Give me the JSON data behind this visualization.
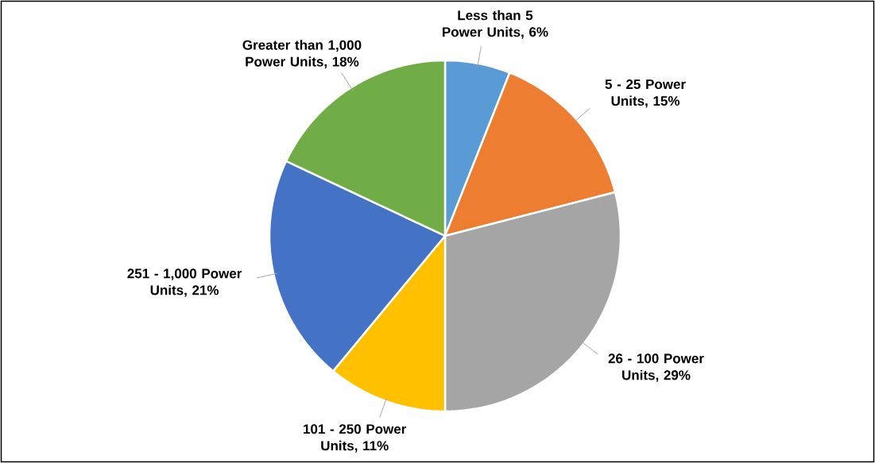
{
  "chart_data": {
    "type": "pie",
    "categories": [
      "Less than 5 Power Units, 6%",
      "5 - 25 Power Units, 15%",
      "26 - 100 Power Units, 29%",
      "101 - 250 Power Units, 11%",
      "251 - 1,000 Power Units, 21%",
      "Greater than 1,000 Power Units, 18%"
    ],
    "values": [
      6,
      15,
      29,
      11,
      21,
      18
    ],
    "colors": [
      "#5b9bd5",
      "#ed7d31",
      "#a5a5a5",
      "#ffc000",
      "#4472c4",
      "#70ad47"
    ]
  }
}
